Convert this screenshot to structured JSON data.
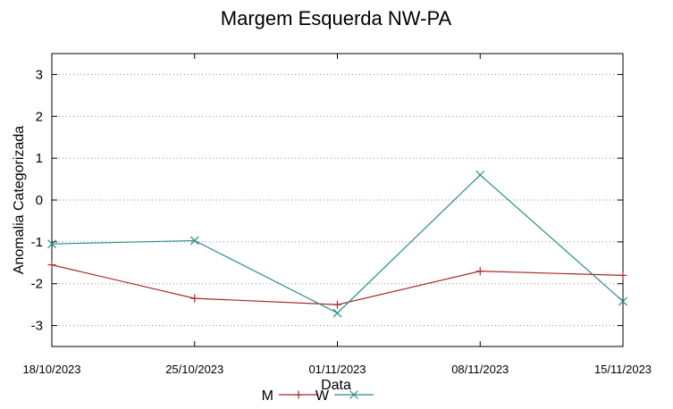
{
  "chart_data": {
    "type": "line",
    "title": "Margem Esquerda NW-PA",
    "xlabel": "Data",
    "ylabel": "Anomalia Categorizada",
    "x": [
      "18/10/2023",
      "25/10/2023",
      "01/11/2023",
      "08/11/2023",
      "15/11/2023"
    ],
    "x_tick_labels": [
      "18/10/2023",
      "25/10/2023",
      "01/11/2023",
      "08/11/2023",
      "15/11/2023"
    ],
    "ylim": [
      -3.5,
      3.5
    ],
    "y_ticks": [
      "3",
      "2",
      "1",
      "0",
      "-1",
      "-2",
      "-3"
    ],
    "y_tick_values": [
      3,
      2,
      1,
      0,
      -1,
      -2,
      -3
    ],
    "grid": "horizontal-dotted",
    "legend_position": "bottom-center",
    "series": [
      {
        "name": "M",
        "color": "#a52a2a",
        "marker": "plus",
        "x": [
          "18/10/2023",
          "25/10/2023",
          "01/11/2023",
          "08/11/2023",
          "15/11/2023"
        ],
        "values": [
          -1.55,
          -2.35,
          -2.5,
          -1.7,
          -1.8
        ]
      },
      {
        "name": "W",
        "color": "#2e8b8b",
        "marker": "cross",
        "x": [
          "18/10/2023",
          "25/10/2023",
          "01/11/2023",
          "08/11/2023",
          "15/11/2023"
        ],
        "values": [
          -1.05,
          -0.97,
          -2.7,
          0.6,
          -2.42
        ]
      }
    ]
  }
}
